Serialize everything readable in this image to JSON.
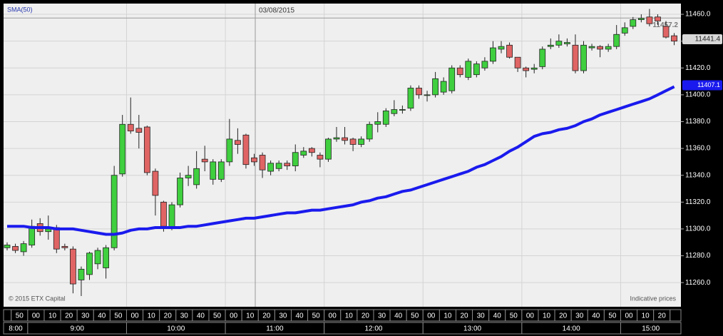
{
  "chart_data": {
    "type": "candlestick",
    "indicator_label": "SMA(50)",
    "date_label": "03/08/2015",
    "copyright": "© 2015 ETX Capital",
    "note": "Indicative prices",
    "up_color": "#3fcf3f",
    "down_color": "#e06464",
    "open": [
      11286,
      11287,
      11283,
      11288,
      11304,
      11298,
      11301,
      11287,
      11285,
      11262,
      11266,
      11274,
      11271,
      11286,
      11341,
      11378,
      11375,
      11376,
      11343,
      11320,
      11301,
      11318,
      11338,
      11333,
      11352,
      11337,
      11337,
      11350,
      11366,
      11370,
      11353,
      11355,
      11343,
      11345,
      11349,
      11347,
      11355,
      11360,
      11355,
      11352,
      11367,
      11368,
      11367,
      11363,
      11367,
      11378,
      11378,
      11386,
      11389,
      11390,
      11405,
      11400,
      11400,
      11402,
      11403,
      11420,
      11413,
      11415,
      11420,
      11425,
      11434,
      11437,
      11428,
      11420,
      11419,
      11421,
      11436,
      11437,
      11438,
      11437,
      11418,
      11435,
      11436,
      11434,
      11436,
      11446,
      11451,
      11456,
      11458,
      11458,
      11451,
      11444
    ],
    "high": [
      11290,
      11289,
      11291,
      11307,
      11308,
      11310,
      11303,
      11289,
      11287,
      11272,
      11283,
      11286,
      11288,
      11347,
      11385,
      11398,
      11385,
      11377,
      11345,
      11321,
      11320,
      11342,
      11347,
      11358,
      11362,
      11352,
      11352,
      11382,
      11375,
      11371,
      11356,
      11357,
      11351,
      11351,
      11351,
      11363,
      11361,
      11361,
      11357,
      11368,
      11376,
      11376,
      11368,
      11369,
      11380,
      11387,
      11390,
      11396,
      11392,
      11407,
      11407,
      11403,
      11417,
      11413,
      11422,
      11422,
      11427,
      11425,
      11428,
      11440,
      11440,
      11439,
      11428,
      11421,
      11423,
      11436,
      11442,
      11445,
      11442,
      11445,
      11440,
      11438,
      11437,
      11438,
      11452,
      11454,
      11458,
      11460,
      11464,
      11460,
      11455,
      11446
    ],
    "low": [
      11284,
      11282,
      11280,
      11286,
      11295,
      11292,
      11282,
      11284,
      11252,
      11250,
      11262,
      11270,
      11263,
      11284,
      11339,
      11371,
      11360,
      11340,
      11310,
      11298,
      11299,
      11316,
      11332,
      11330,
      11343,
      11333,
      11335,
      11347,
      11356,
      11345,
      11347,
      11338,
      11340,
      11343,
      11344,
      11343,
      11353,
      11354,
      11346,
      11350,
      11365,
      11363,
      11358,
      11361,
      11365,
      11372,
      11376,
      11384,
      11386,
      11388,
      11397,
      11395,
      11398,
      11400,
      11401,
      11413,
      11411,
      11413,
      11418,
      11423,
      11431,
      11427,
      11417,
      11413,
      11416,
      11419,
      11434,
      11435,
      11436,
      11416,
      11416,
      11433,
      11428,
      11432,
      11434,
      11444,
      11449,
      11454,
      11451,
      11452,
      11442,
      11437
    ],
    "close": [
      11288,
      11284,
      11289,
      11302,
      11298,
      11300,
      11285,
      11286,
      11259,
      11270,
      11282,
      11284,
      11286,
      11340,
      11378,
      11373,
      11372,
      11342,
      11325,
      11302,
      11318,
      11338,
      11340,
      11345,
      11350,
      11350,
      11350,
      11367,
      11363,
      11348,
      11350,
      11344,
      11349,
      11349,
      11347,
      11357,
      11358,
      11357,
      11352,
      11367,
      11368,
      11366,
      11363,
      11367,
      11378,
      11380,
      11388,
      11389,
      11389,
      11405,
      11400,
      11400,
      11412,
      11410,
      11420,
      11415,
      11425,
      11423,
      11425,
      11435,
      11436,
      11428,
      11420,
      11418,
      11420,
      11434,
      11437,
      11440,
      11439,
      11418,
      11437,
      11436,
      11434,
      11436,
      11445,
      11450,
      11456,
      11457,
      11453,
      11455,
      11443,
      11440
    ],
    "sma": {
      "color": "#1a1aee",
      "values": [
        11302,
        11302,
        11302,
        11301,
        11301,
        11301,
        11300,
        11300,
        11300,
        11299,
        11298,
        11297,
        11296,
        11296,
        11297,
        11299,
        11300,
        11300,
        11301,
        11301,
        11301,
        11301,
        11302,
        11302,
        11303,
        11304,
        11305,
        11306,
        11307,
        11308,
        11308,
        11309,
        11310,
        11311,
        11312,
        11312,
        11313,
        11314,
        11314,
        11315,
        11316,
        11317,
        11318,
        11320,
        11321,
        11323,
        11324,
        11326,
        11328,
        11329,
        11331,
        11333,
        11335,
        11337,
        11339,
        11341,
        11343,
        11346,
        11348,
        11351,
        11354,
        11358,
        11361,
        11365,
        11369,
        11371,
        11372,
        11374,
        11375,
        11377,
        11380,
        11382,
        11385,
        11387,
        11389,
        11391,
        11393,
        11395,
        11397,
        11400,
        11403,
        11406
      ]
    },
    "crosshair_price": 11457.2,
    "last_price": 11441.4,
    "sma_last": 11407.1,
    "ylim": [
      11242,
      11468
    ],
    "yticks": [
      {
        "value": 11260,
        "label": "11260.0"
      },
      {
        "value": 11280,
        "label": "11280.0"
      },
      {
        "value": 11300,
        "label": "11300.0"
      },
      {
        "value": 11320,
        "label": "11320.0"
      },
      {
        "value": 11340,
        "label": "11340.0"
      },
      {
        "value": 11360,
        "label": "11360.0"
      },
      {
        "value": 11380,
        "label": "11380.0"
      },
      {
        "value": 11400,
        "label": "11400.0"
      },
      {
        "value": 11420,
        "label": "11420.0"
      },
      {
        "value": 11440,
        "label": "11440.0"
      },
      {
        "value": 11460,
        "label": "11460.0"
      }
    ],
    "grid": true,
    "minute_labels": [
      "50",
      "00",
      "10",
      "20",
      "30",
      "40",
      "50",
      "00",
      "10",
      "20",
      "30",
      "40",
      "50",
      "00",
      "10",
      "20",
      "30",
      "40",
      "50",
      "00",
      "10",
      "20",
      "30",
      "40",
      "50",
      "00",
      "10",
      "20",
      "30",
      "40",
      "50",
      "00",
      "10",
      "20",
      "30",
      "40",
      "50",
      "00",
      "10",
      "20"
    ],
    "hour_labels": [
      "8:00",
      "9:00",
      "10:00",
      "11:00",
      "12:00",
      "13:00",
      "14:00",
      "15:00"
    ]
  }
}
